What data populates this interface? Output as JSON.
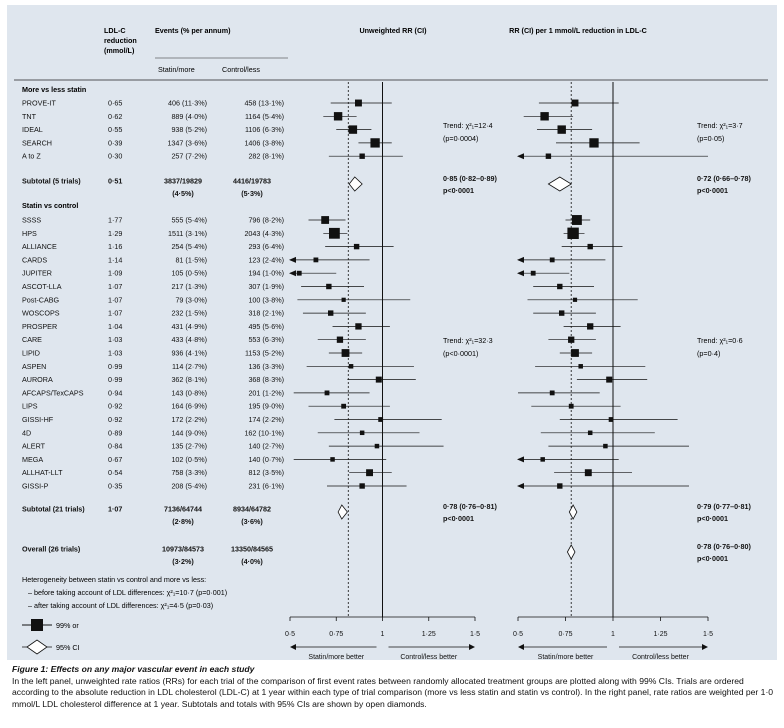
{
  "headers": {
    "ldl": [
      "LDL-C",
      "reduction",
      "(mmol/L)"
    ],
    "events": "Events (% per annum)",
    "statin_more": "Statin/more",
    "control_less": "Control/less",
    "unweighted": "Unweighted RR (CI)",
    "perunit": "RR (CI) per 1 mmol/L reduction in LDL-C"
  },
  "chart_data": {
    "type": "forest",
    "xlim": [
      0.5,
      1.5
    ],
    "ticks": [
      "0·5",
      "0·75",
      "1",
      "1·25",
      "1·5"
    ],
    "tick_values": [
      0.5,
      0.75,
      1,
      1.25,
      1.5
    ],
    "left_panel_title": "Unweighted RR (CI)",
    "right_panel_title": "RR (CI) per 1 mmol/L reduction in LDL-C",
    "left_dashed_ref": 0.815,
    "right_dashed_ref": 0.78,
    "axis_left_label": "Statin/more better",
    "axis_right_label": "Control/less better",
    "groups": [
      {
        "title": "More vs less statin",
        "trials": [
          {
            "name": "PROVE-IT",
            "ldl": "0·65",
            "s": "406 (11·3%)",
            "c": "458 (13·1%)",
            "rr": 0.87,
            "lo": 0.72,
            "hi": 1.05,
            "rr2": 0.8,
            "lo2": 0.61,
            "hi2": 1.03,
            "w": 1.3
          },
          {
            "name": "TNT",
            "ldl": "0·62",
            "s": "889 (4·0%)",
            "c": "1164 (5·4%)",
            "rr": 0.76,
            "lo": 0.68,
            "hi": 0.86,
            "rr2": 0.64,
            "lo2": 0.53,
            "hi2": 0.79,
            "w": 1.8
          },
          {
            "name": "IDEAL",
            "ldl": "0·55",
            "s": "938 (5·2%)",
            "c": "1106 (6·3%)",
            "rr": 0.84,
            "lo": 0.75,
            "hi": 0.94,
            "rr2": 0.73,
            "lo2": 0.6,
            "hi2": 0.89,
            "w": 1.8
          },
          {
            "name": "SEARCH",
            "ldl": "0·39",
            "s": "1347 (3·6%)",
            "c": "1406 (3·8%)",
            "rr": 0.96,
            "lo": 0.87,
            "hi": 1.05,
            "rr2": 0.9,
            "lo2": 0.7,
            "hi2": 1.14,
            "w": 2.1
          },
          {
            "name": "A to Z",
            "ldl": "0·30",
            "s": "257 (7·2%)",
            "c": "282 (8·1%)",
            "rr": 0.89,
            "lo": 0.71,
            "hi": 1.11,
            "rr2": 0.66,
            "lo2": 0.5,
            "hi2": 1.5,
            "w": 0.8,
            "arrow2": true
          }
        ],
        "subtotal": {
          "name": "Subtotal (5 trials)",
          "ldl": "0·51",
          "s": "3837/19829",
          "sp": "(4·5%)",
          "c": "4416/19783",
          "cp": "(5·3%)",
          "rr": 0.85,
          "lo": 0.82,
          "hi": 0.89,
          "rr2": 0.72,
          "lo2": 0.66,
          "hi2": 0.78,
          "res": "0·85 (0·82–0·89)",
          "p": "p<0·0001",
          "res2": "0·72 (0·66–0·78)",
          "p2": "p<0·0001"
        },
        "trend_left": [
          "Trend: χ²₁=12·4",
          "(p=0·0004)"
        ],
        "trend_right": [
          "Trend: χ²₁=3·7",
          "(p=0·05)"
        ]
      },
      {
        "title": "Statin vs control",
        "trials": [
          {
            "name": "SSSS",
            "ldl": "1·77",
            "s": "555 (5·4%)",
            "c": "796 (8·2%)",
            "rr": 0.69,
            "lo": 0.6,
            "hi": 0.8,
            "rr2": 0.81,
            "lo2": 0.75,
            "hi2": 0.88,
            "w": 1.6,
            "w2": 2.3
          },
          {
            "name": "HPS",
            "ldl": "1·29",
            "s": "1511 (3·1%)",
            "c": "2043 (4·3%)",
            "rr": 0.74,
            "lo": 0.68,
            "hi": 0.81,
            "rr2": 0.79,
            "lo2": 0.74,
            "hi2": 0.85,
            "w": 2.6,
            "w2": 2.8
          },
          {
            "name": "ALLIANCE",
            "ldl": "1·16",
            "s": "254 (5·4%)",
            "c": "293 (6·4%)",
            "rr": 0.86,
            "lo": 0.69,
            "hi": 1.06,
            "rr2": 0.88,
            "lo2": 0.73,
            "hi2": 1.05,
            "w": 0.8
          },
          {
            "name": "CARDS",
            "ldl": "1·14",
            "s": "81 (1·5%)",
            "c": "123 (2·4%)",
            "rr": 0.64,
            "lo": 0.44,
            "hi": 0.93,
            "rr2": 0.68,
            "lo2": 0.5,
            "hi2": 0.96,
            "w": 0.6,
            "arrow1": true,
            "arrow2": true
          },
          {
            "name": "JUPITER",
            "ldl": "1·09",
            "s": "105 (0·5%)",
            "c": "194 (1·0%)",
            "rr": 0.55,
            "lo": 0.5,
            "hi": 0.75,
            "rr2": 0.58,
            "lo2": 0.5,
            "hi2": 0.77,
            "w": 0.6,
            "arrow1": true,
            "arrow2": true
          },
          {
            "name": "ASCOT-LLA",
            "ldl": "1·07",
            "s": "217 (1·3%)",
            "c": "307 (1·9%)",
            "rr": 0.71,
            "lo": 0.56,
            "hi": 0.9,
            "rr2": 0.72,
            "lo2": 0.58,
            "hi2": 0.9,
            "w": 0.8
          },
          {
            "name": "Post-CABG",
            "ldl": "1·07",
            "s": "79 (3·0%)",
            "c": "100 (3·8%)",
            "rr": 0.79,
            "lo": 0.54,
            "hi": 1.15,
            "rr2": 0.8,
            "lo2": 0.55,
            "hi2": 1.13,
            "w": 0.4
          },
          {
            "name": "WOSCOPS",
            "ldl": "1·07",
            "s": "232 (1·5%)",
            "c": "318 (2·1%)",
            "rr": 0.72,
            "lo": 0.57,
            "hi": 0.91,
            "rr2": 0.73,
            "lo2": 0.58,
            "hi2": 0.91,
            "w": 0.8
          },
          {
            "name": "PROSPER",
            "ldl": "1·04",
            "s": "431 (4·9%)",
            "c": "495 (5·6%)",
            "rr": 0.87,
            "lo": 0.73,
            "hi": 1.04,
            "rr2": 0.88,
            "lo2": 0.74,
            "hi2": 1.04,
            "w": 1.1
          },
          {
            "name": "CARE",
            "ldl": "1·03",
            "s": "433 (4·8%)",
            "c": "553 (6·3%)",
            "rr": 0.77,
            "lo": 0.65,
            "hi": 0.91,
            "rr2": 0.78,
            "lo2": 0.66,
            "hi2": 0.91,
            "w": 1.1
          },
          {
            "name": "LIPID",
            "ldl": "1·03",
            "s": "936 (4·1%)",
            "c": "1153 (5·2%)",
            "rr": 0.8,
            "lo": 0.71,
            "hi": 0.89,
            "rr2": 0.8,
            "lo2": 0.72,
            "hi2": 0.89,
            "w": 1.6
          },
          {
            "name": "ASPEN",
            "ldl": "0·99",
            "s": "114 (2·7%)",
            "c": "136 (3·3%)",
            "rr": 0.83,
            "lo": 0.59,
            "hi": 1.17,
            "rr2": 0.83,
            "lo2": 0.59,
            "hi2": 1.17,
            "w": 0.5
          },
          {
            "name": "AURORA",
            "ldl": "0·99",
            "s": "362 (8·1%)",
            "c": "368 (8·3%)",
            "rr": 0.98,
            "lo": 0.81,
            "hi": 1.18,
            "rr2": 0.98,
            "lo2": 0.81,
            "hi2": 1.18,
            "w": 1.0
          },
          {
            "name": "AFCAPS/TexCAPS",
            "ldl": "0·94",
            "s": "143 (0·8%)",
            "c": "201 (1·2%)",
            "rr": 0.7,
            "lo": 0.52,
            "hi": 0.93,
            "rr2": 0.68,
            "lo2": 0.5,
            "hi2": 0.93,
            "w": 0.6
          },
          {
            "name": "LIPS",
            "ldl": "0·92",
            "s": "164 (6·9%)",
            "c": "195 (9·0%)",
            "rr": 0.79,
            "lo": 0.6,
            "hi": 1.04,
            "rr2": 0.78,
            "lo2": 0.57,
            "hi2": 1.04,
            "w": 0.6
          },
          {
            "name": "GISSI-HF",
            "ldl": "0·92",
            "s": "172 (2·2%)",
            "c": "174 (2·2%)",
            "rr": 0.99,
            "lo": 0.74,
            "hi": 1.32,
            "rr2": 0.99,
            "lo2": 0.72,
            "hi2": 1.34,
            "w": 0.6
          },
          {
            "name": "4D",
            "ldl": "0·89",
            "s": "144 (9·0%)",
            "c": "162 (10·1%)",
            "rr": 0.89,
            "lo": 0.65,
            "hi": 1.2,
            "rr2": 0.88,
            "lo2": 0.62,
            "hi2": 1.22,
            "w": 0.5
          },
          {
            "name": "ALERT",
            "ldl": "0·84",
            "s": "135 (2·7%)",
            "c": "140 (2·7%)",
            "rr": 0.97,
            "lo": 0.71,
            "hi": 1.33,
            "rr2": 0.96,
            "lo2": 0.66,
            "hi2": 1.4,
            "w": 0.5
          },
          {
            "name": "MEGA",
            "ldl": "0·67",
            "s": "102 (0·5%)",
            "c": "140 (0·7%)",
            "rr": 0.73,
            "lo": 0.52,
            "hi": 1.02,
            "rr2": 0.63,
            "lo2": 0.5,
            "hi2": 1.03,
            "w": 0.5,
            "arrow2": true
          },
          {
            "name": "ALLHAT-LLT",
            "ldl": "0·54",
            "s": "758 (3·3%)",
            "c": "812 (3·5%)",
            "rr": 0.93,
            "lo": 0.82,
            "hi": 1.05,
            "rr2": 0.87,
            "lo2": 0.69,
            "hi2": 1.1,
            "w": 1.3
          },
          {
            "name": "GISSI-P",
            "ldl": "0·35",
            "s": "208 (5·4%)",
            "c": "231 (6·1%)",
            "rr": 0.89,
            "lo": 0.7,
            "hi": 1.13,
            "rr2": 0.72,
            "lo2": 0.5,
            "hi2": 1.4,
            "w": 0.8,
            "arrow2": true
          }
        ],
        "subtotal": {
          "name": "Subtotal (21 trials)",
          "ldl": "1·07",
          "s": "7136/64744",
          "sp": "(2·8%)",
          "c": "8934/64782",
          "cp": "(3·6%)",
          "rr": 0.78,
          "lo": 0.76,
          "hi": 0.81,
          "rr2": 0.79,
          "lo2": 0.77,
          "hi2": 0.81,
          "res": "0·78 (0·76–0·81)",
          "p": "p<0·0001",
          "res2": "0·79 (0·77–0·81)",
          "p2": "p<0·0001"
        },
        "trend_left": [
          "Trend: χ²₁=32·3",
          "(p<0·0001)"
        ],
        "trend_right": [
          "Trend: χ²₁=0·6",
          "(p=0·4)"
        ]
      }
    ],
    "overall": {
      "name": "Overall (26 trials)",
      "s": "10973/84573",
      "sp": "(3·2%)",
      "c": "13350/84565",
      "cp": "(4·0%)",
      "rr2": 0.78,
      "lo2": 0.76,
      "hi2": 0.8,
      "res2": "0·78 (0·76–0·80)",
      "p2": "p<0·0001"
    }
  },
  "notes": {
    "heterogeneity": "Heterogeneity between statin vs control and more vs less:",
    "before": "– before taking account of LDL differences: χ²₁=10·7 (p=0·001)",
    "after": "– after taking account of LDL differences: χ²₁=4·5 (p=0·03)"
  },
  "legend": {
    "ci99": "99% or",
    "ci95": "95% CI"
  },
  "caption": {
    "title": "Figure 1: Effects on any major vascular event in each study",
    "body": "In the left panel, unweighted rate ratios (RRs) for each trial of the comparison of first event rates between randomly allocated treatment groups are plotted along with 99% CIs. Trials are ordered according to the absolute reduction in LDL cholesterol (LDL-C) at 1 year within each type of trial comparison (more vs less statin and statin vs control). In the right panel, rate ratios are weighted per 1·0 mmol/L LDL cholesterol difference at 1 year. Subtotals and totals with 95% CIs are shown by open diamonds."
  },
  "colors": {
    "panel": "#dfe6ee",
    "ink": "#111111"
  }
}
